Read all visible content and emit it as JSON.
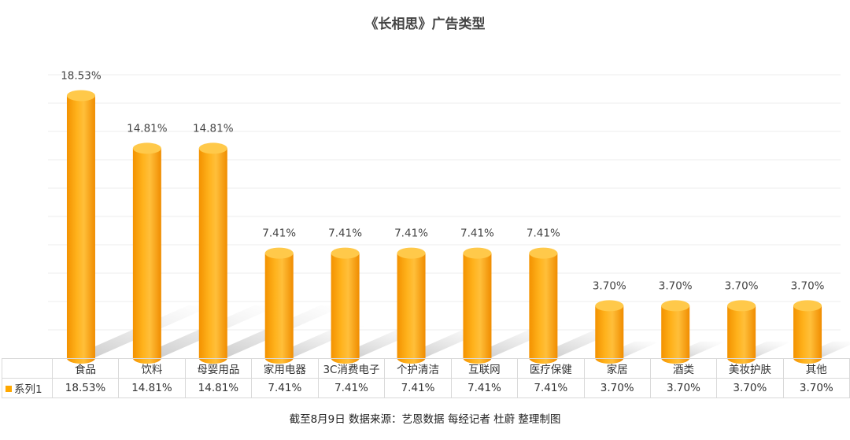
{
  "chart_data": {
    "type": "bar",
    "title": "《长相思》广告类型",
    "categories": [
      "食品",
      "饮料",
      "母婴用品",
      "家用电器",
      "3C消费电子",
      "个护清洁",
      "互联网",
      "医疗保健",
      "家居",
      "酒类",
      "美妆护肤",
      "其他"
    ],
    "series": [
      {
        "name": "系列1",
        "values": [
          18.53,
          14.81,
          14.81,
          7.41,
          7.41,
          7.41,
          7.41,
          7.41,
          3.7,
          3.7,
          3.7,
          3.7
        ],
        "labels": [
          "18.53%",
          "14.81%",
          "14.81%",
          "7.41%",
          "7.41%",
          "7.41%",
          "7.41%",
          "7.41%",
          "3.70%",
          "3.70%",
          "3.70%",
          "3.70%"
        ]
      }
    ],
    "ylim": [
      0,
      20
    ],
    "unit": "%",
    "grid": true,
    "data_table": true,
    "bar_color": "#ffa800"
  },
  "footer": "截至8月9日 数据来源：艺恩数据 每经记者 杜蔚 整理制图"
}
